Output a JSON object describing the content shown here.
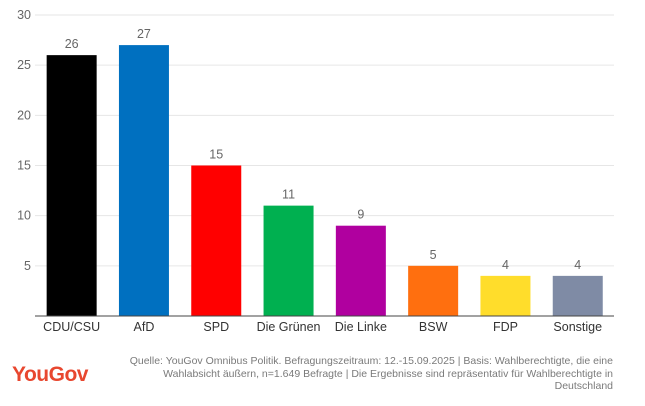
{
  "chart_data": {
    "type": "bar",
    "title": "",
    "xlabel": "",
    "ylabel": "",
    "categories": [
      "CDU/CSU",
      "AfD",
      "SPD",
      "Die Grünen",
      "Die Linke",
      "BSW",
      "FDP",
      "Sonstige"
    ],
    "values": [
      26,
      27,
      15,
      11,
      9,
      5,
      4,
      4
    ],
    "data_labels": [
      "26",
      "27",
      "15",
      "11",
      "9",
      "5",
      "4",
      "4"
    ],
    "colors": [
      "#000000",
      "#0070c0",
      "#ff0000",
      "#00b050",
      "#b0009f",
      "#ff6f0f",
      "#ffdd2b",
      "#7f8ba5"
    ],
    "ylim": [
      0,
      30
    ],
    "y_ticks": [
      5,
      10,
      15,
      20,
      25,
      30
    ],
    "y_tick_labels": [
      "5",
      "10",
      "15",
      "20",
      "25",
      "30"
    ],
    "grid": true
  },
  "footer": {
    "logo": "YouGov",
    "source_lines": [
      "Quelle: YouGov Omnibus Politik. Befragungszeitraum: 12.-15.09.2025 | Basis: Wahlberechtigte, die eine",
      "Wahlabsicht äußern, n=1.649 Befragte | Die Ergebnisse sind repräsentativ für Wahlberechtigte in",
      "Deutschland"
    ],
    "logo_color": "#e8472f"
  }
}
